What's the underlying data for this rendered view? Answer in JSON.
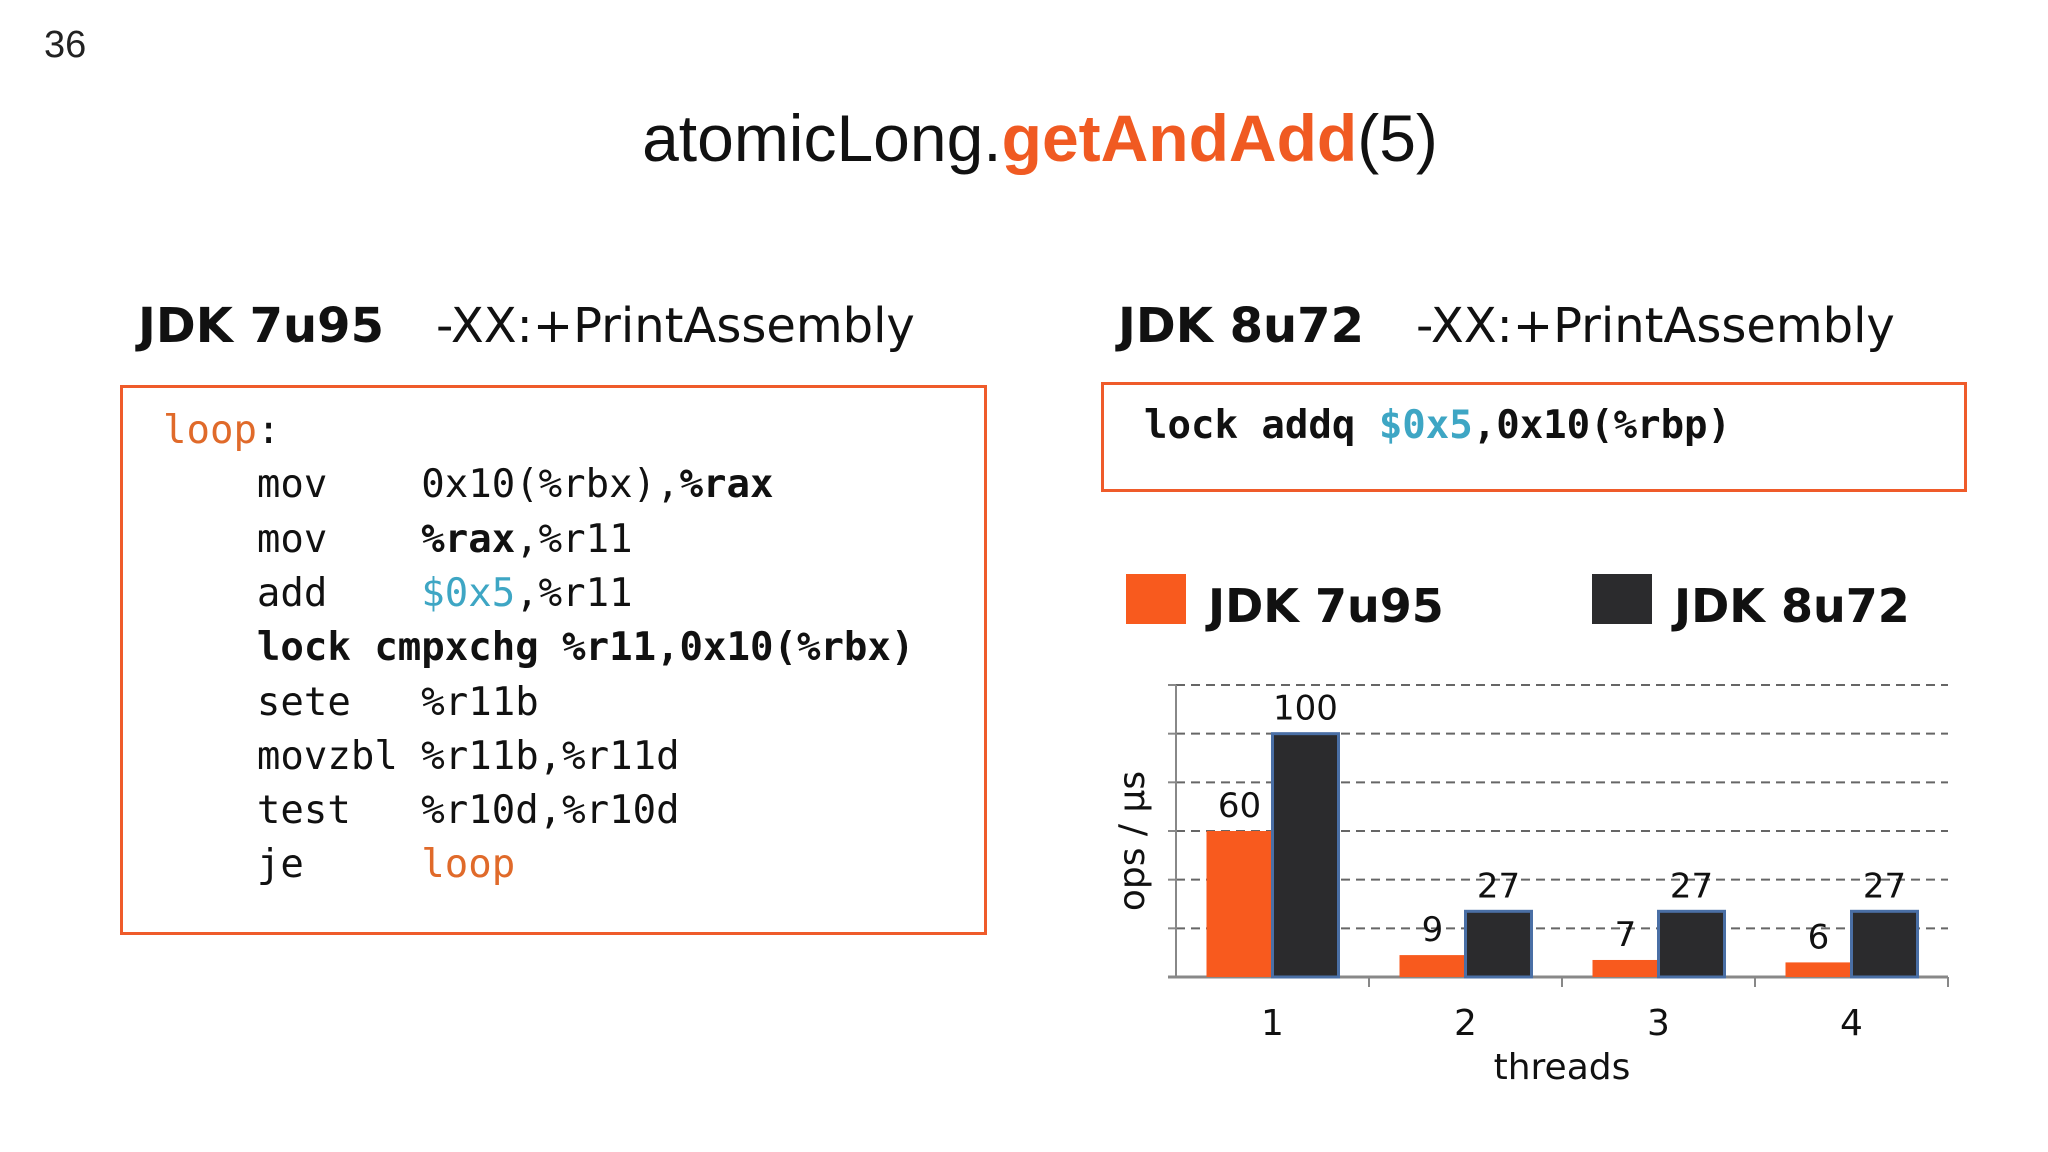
{
  "slide_number": "36",
  "title": {
    "object": "atomicLong.",
    "method": "getAndAdd",
    "args": "(5)"
  },
  "left": {
    "version": "JDK 7u95",
    "flag": "-XX:+PrintAssembly",
    "code": [
      [
        {
          "t": "loop",
          "s": "kw"
        },
        {
          "t": ":",
          "s": ""
        }
      ],
      [
        {
          "t": "    mov    0x10(%rbx),",
          "s": ""
        },
        {
          "t": "%rax",
          "s": "b"
        }
      ],
      [
        {
          "t": "    mov    ",
          "s": ""
        },
        {
          "t": "%rax",
          "s": "b"
        },
        {
          "t": ",%r11",
          "s": ""
        }
      ],
      [
        {
          "t": "    add    ",
          "s": ""
        },
        {
          "t": "$0x5",
          "s": "num"
        },
        {
          "t": ",%r11",
          "s": ""
        }
      ],
      [
        {
          "t": "    lock cmpxchg %r11,0x10(%rbx)",
          "s": "b"
        }
      ],
      [
        {
          "t": "    sete   %r11b",
          "s": ""
        }
      ],
      [
        {
          "t": "    movzbl %r11b,%r11d",
          "s": ""
        }
      ],
      [
        {
          "t": "    test   %r10d,%r10d",
          "s": ""
        }
      ],
      [
        {
          "t": "    je     ",
          "s": ""
        },
        {
          "t": "loop",
          "s": "kw"
        }
      ]
    ]
  },
  "right": {
    "version": "JDK 8u72",
    "flag": "-XX:+PrintAssembly",
    "code": [
      [
        {
          "t": "lock addq ",
          "s": ""
        },
        {
          "t": "$0x5",
          "s": "num"
        },
        {
          "t": ",0x10(%rbp)",
          "s": ""
        }
      ]
    ]
  },
  "colors": {
    "accent": "#f05a22",
    "jdk7": "#f85a1e",
    "jdk8": "#2b2b2d",
    "number": "#3ea6c4"
  },
  "chart_data": {
    "type": "bar",
    "categories": [
      "1",
      "2",
      "3",
      "4"
    ],
    "series": [
      {
        "name": "JDK 7u95",
        "values": [
          60,
          9,
          7,
          6
        ]
      },
      {
        "name": "JDK 8u72",
        "values": [
          100,
          27,
          27,
          27
        ]
      }
    ],
    "xlabel": "threads",
    "ylabel": "ops / µs",
    "ylim": [
      0,
      120
    ],
    "grid": true,
    "legend": "top"
  }
}
